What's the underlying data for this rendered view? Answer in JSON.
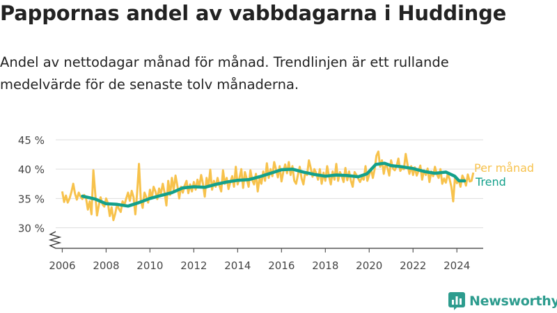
{
  "header": {
    "title": "Pappornas andel av vabbdagarna i Huddinge",
    "subtitle": "Andel av nettodagar månad för månad. Trendlinjen är ett rullande medelvärde för de senaste tolv månaderna."
  },
  "brand": {
    "name": "Newsworthy"
  },
  "colors": {
    "monthly": "#f7c24c",
    "trend": "#13a08b",
    "grid": "#dddddd",
    "axis": "#555555",
    "brand": "#2d9c8e"
  },
  "chart_data": {
    "type": "line",
    "xlim": [
      2005.7,
      2025.2
    ],
    "ylim": [
      26.5,
      45
    ],
    "yticks": [
      30,
      35,
      40,
      45
    ],
    "ytick_labels": [
      "30 %",
      "35 %",
      "40 %",
      "45 %"
    ],
    "xticks": [
      2006,
      2008,
      2010,
      2012,
      2014,
      2016,
      2018,
      2020,
      2022,
      2024
    ],
    "xtick_labels": [
      "2006",
      "2008",
      "2010",
      "2012",
      "2014",
      "2016",
      "2018",
      "2020",
      "2022",
      "2024"
    ],
    "legend_placement": "right-end",
    "series": [
      {
        "name": "Per månad",
        "x_start": 2006.0,
        "step": 0.08333,
        "values": [
          36.2,
          34.4,
          35.5,
          34.3,
          35.0,
          36.1,
          37.5,
          35.8,
          34.8,
          36.0,
          35.3,
          34.9,
          35.6,
          35.0,
          33.1,
          34.5,
          32.3,
          39.8,
          36.0,
          32.1,
          33.8,
          35.2,
          34.0,
          33.6,
          35.0,
          34.2,
          32.0,
          33.5,
          31.3,
          32.4,
          34.0,
          33.2,
          32.7,
          34.5,
          33.9,
          35.0,
          36.0,
          34.6,
          36.3,
          35.2,
          32.3,
          36.0,
          40.9,
          34.7,
          33.4,
          36.0,
          35.2,
          34.3,
          36.5,
          35.0,
          37.0,
          36.2,
          34.9,
          36.7,
          35.8,
          37.5,
          36.0,
          33.8,
          38.0,
          35.6,
          38.5,
          36.4,
          38.9,
          37.2,
          35.0,
          37.0,
          36.0,
          37.2,
          38.0,
          35.9,
          37.4,
          36.2,
          37.8,
          36.5,
          38.2,
          37.0,
          39.0,
          37.5,
          35.3,
          38.5,
          37.0,
          39.9,
          36.5,
          38.0,
          37.0,
          38.5,
          37.2,
          36.2,
          39.8,
          37.5,
          38.5,
          36.6,
          37.8,
          38.8,
          37.0,
          40.4,
          37.4,
          38.5,
          40.0,
          36.8,
          39.5,
          38.3,
          37.0,
          39.8,
          38.1,
          37.4,
          39.2,
          36.2,
          38.5,
          37.5,
          39.6,
          38.0,
          41.0,
          38.5,
          40.0,
          38.8,
          41.2,
          40.0,
          38.6,
          40.5,
          37.9,
          39.5,
          40.8,
          39.3,
          41.2,
          39.0,
          40.5,
          38.0,
          37.5,
          39.0,
          40.4,
          38.4,
          37.4,
          39.5,
          39.0,
          41.5,
          40.2,
          38.7,
          40.0,
          39.3,
          38.2,
          40.0,
          37.5,
          39.4,
          38.0,
          40.5,
          38.8,
          37.4,
          39.6,
          38.2,
          40.9,
          38.0,
          39.5,
          38.8,
          37.8,
          40.2,
          38.1,
          39.6,
          38.0,
          37.0,
          39.5,
          39.0,
          38.4,
          37.8,
          38.6,
          38.2,
          40.5,
          38.0,
          39.0,
          40.1,
          38.5,
          40.0,
          42.3,
          43.0,
          40.4,
          41.5,
          39.2,
          41.0,
          40.2,
          38.9,
          41.5,
          40.1,
          39.8,
          40.5,
          41.8,
          39.7,
          40.2,
          40.0,
          42.6,
          40.8,
          39.2,
          40.5,
          39.0,
          40.3,
          38.9,
          39.7,
          40.6,
          38.2,
          39.8,
          39.0,
          40.1,
          37.8,
          39.6,
          38.8,
          40.4,
          39.2,
          38.5,
          40.0,
          37.5,
          38.4,
          37.7,
          39.2,
          38.3,
          37.0,
          34.5,
          38.8,
          37.6,
          38.2,
          37.0,
          38.9,
          38.3,
          37.2,
          39.1,
          37.9,
          38.0,
          39.4
        ]
      },
      {
        "name": "Trend",
        "anchors": [
          [
            2006.92,
            35.4
          ],
          [
            2007.5,
            34.9
          ],
          [
            2008.0,
            34.1
          ],
          [
            2008.5,
            34.0
          ],
          [
            2009.0,
            33.7
          ],
          [
            2009.5,
            34.3
          ],
          [
            2010.0,
            35.0
          ],
          [
            2010.5,
            35.5
          ],
          [
            2011.0,
            36.0
          ],
          [
            2011.5,
            36.8
          ],
          [
            2012.0,
            37.0
          ],
          [
            2012.5,
            36.9
          ],
          [
            2013.0,
            37.4
          ],
          [
            2013.5,
            37.8
          ],
          [
            2014.0,
            38.1
          ],
          [
            2014.5,
            38.2
          ],
          [
            2015.0,
            38.7
          ],
          [
            2015.5,
            39.3
          ],
          [
            2016.0,
            39.9
          ],
          [
            2016.5,
            40.0
          ],
          [
            2017.0,
            39.5
          ],
          [
            2017.5,
            39.1
          ],
          [
            2018.0,
            38.8
          ],
          [
            2018.5,
            39.0
          ],
          [
            2019.0,
            38.9
          ],
          [
            2019.5,
            38.7
          ],
          [
            2019.9,
            39.2
          ],
          [
            2020.3,
            40.8
          ],
          [
            2020.7,
            41.0
          ],
          [
            2021.0,
            40.6
          ],
          [
            2021.5,
            40.4
          ],
          [
            2022.0,
            40.1
          ],
          [
            2022.5,
            39.6
          ],
          [
            2023.0,
            39.3
          ],
          [
            2023.5,
            39.5
          ],
          [
            2023.9,
            38.8
          ],
          [
            2024.1,
            38.0
          ],
          [
            2024.35,
            38.0
          ]
        ]
      }
    ]
  }
}
